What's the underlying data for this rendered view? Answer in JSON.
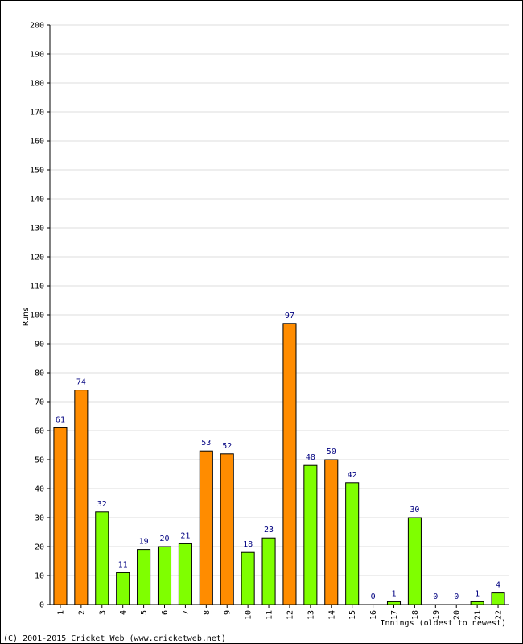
{
  "chart_data": {
    "type": "bar",
    "categories": [
      "1",
      "2",
      "3",
      "4",
      "5",
      "6",
      "7",
      "8",
      "9",
      "10",
      "11",
      "12",
      "13",
      "14",
      "15",
      "16",
      "17",
      "18",
      "19",
      "20",
      "21",
      "22"
    ],
    "values": [
      61,
      74,
      32,
      11,
      19,
      20,
      21,
      53,
      52,
      18,
      23,
      97,
      48,
      50,
      42,
      0,
      1,
      30,
      0,
      0,
      1,
      4
    ],
    "bar_colors": [
      "#ff8c00",
      "#ff8c00",
      "#7fff00",
      "#7fff00",
      "#7fff00",
      "#7fff00",
      "#7fff00",
      "#ff8c00",
      "#ff8c00",
      "#7fff00",
      "#7fff00",
      "#ff8c00",
      "#7fff00",
      "#ff8c00",
      "#7fff00",
      "#7fff00",
      "#7fff00",
      "#7fff00",
      "#7fff00",
      "#7fff00",
      "#7fff00",
      "#7fff00"
    ],
    "show_value_labels": true,
    "ylabel": "Runs",
    "xlabel": "Innings (oldest to newest)",
    "ylim": [
      0,
      200
    ],
    "y_ticks": [
      0,
      10,
      20,
      30,
      40,
      50,
      60,
      70,
      80,
      90,
      100,
      110,
      120,
      130,
      140,
      150,
      160,
      170,
      180,
      190,
      200
    ],
    "grid": true,
    "colors": {
      "grid": "#dddddd",
      "value_label": "#000080",
      "bar_outline": "#000000",
      "axis": "#000000"
    }
  },
  "footer": {
    "copyright": "(C) 2001-2015 Cricket Web (www.cricketweb.net)"
  }
}
